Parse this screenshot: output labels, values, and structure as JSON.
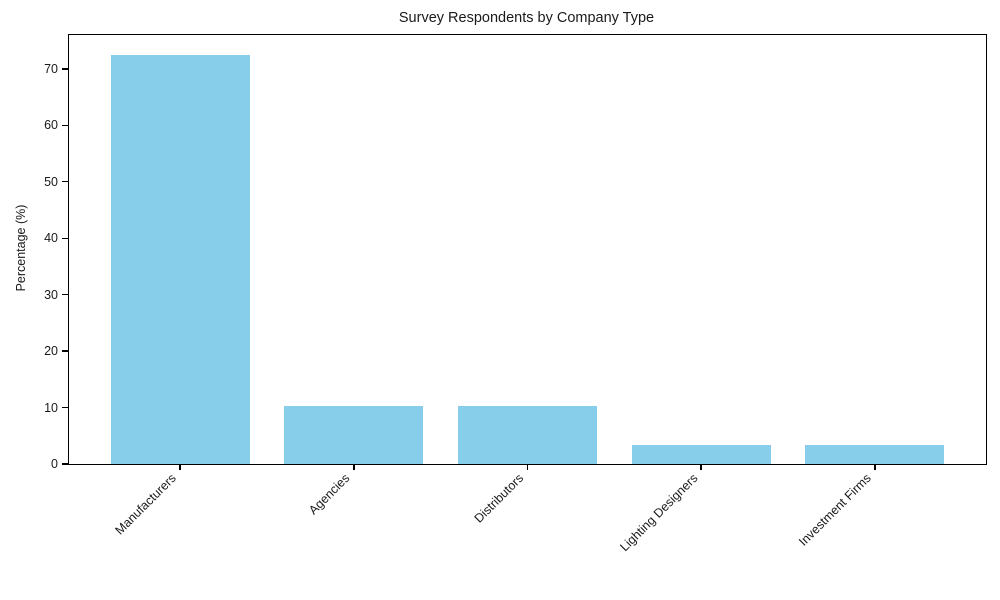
{
  "chart_data": {
    "type": "bar",
    "title": "Survey Respondents by Company Type",
    "categories": [
      "Manufacturers",
      "Agencies",
      "Distributors",
      "Lighting Designers",
      "Investment Firms"
    ],
    "values": [
      72.4,
      10.3,
      10.3,
      3.4,
      3.4
    ],
    "xlabel": "",
    "ylabel": "Percentage (%)",
    "yticks": [
      0,
      10,
      20,
      30,
      40,
      50,
      60,
      70
    ],
    "ylim": [
      0,
      76
    ],
    "bar_color": "#87CEEB",
    "bar_width_fraction": 0.8,
    "x_margin_units": 0.64,
    "grid": false,
    "legend": false,
    "background_color": "#ffffff",
    "axis_color": "#000000",
    "text_color": "#1a1a1a",
    "xtick_rotation_deg": 45
  }
}
